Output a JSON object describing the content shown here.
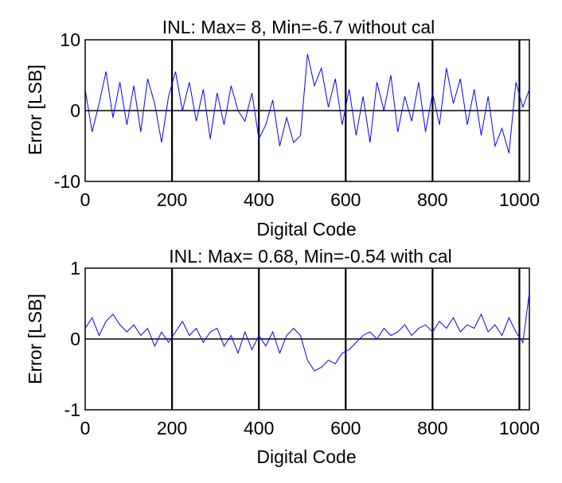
{
  "colors": {
    "trace": "#0000ff",
    "axes": "#000000",
    "background": "#ffffff"
  },
  "chart_data": [
    {
      "type": "line",
      "title": "INL: Max= 8, Min=-6.7 without cal",
      "xlabel": "Digital Code",
      "ylabel": "Error [LSB]",
      "xlim": [
        0,
        1023
      ],
      "ylim": [
        -10,
        10
      ],
      "xticks": [
        "0",
        "200",
        "400",
        "600",
        "800",
        "1000"
      ],
      "xtick_values": [
        0,
        200,
        400,
        600,
        800,
        1000
      ],
      "yticks": [
        "-10",
        "0",
        "10"
      ],
      "ytick_values": [
        -10,
        0,
        10
      ],
      "reference_lines_x": [
        200,
        400,
        600,
        800,
        1000
      ],
      "reference_line_y": 0,
      "grid": false,
      "legend": "none",
      "series": [
        {
          "x": [
            0,
            16,
            32,
            48,
            64,
            80,
            96,
            112,
            128,
            144,
            160,
            176,
            192,
            208,
            224,
            240,
            256,
            272,
            288,
            304,
            320,
            336,
            352,
            368,
            384,
            400,
            416,
            432,
            448,
            464,
            480,
            496,
            512,
            528,
            544,
            560,
            576,
            592,
            608,
            624,
            640,
            656,
            672,
            688,
            704,
            720,
            736,
            752,
            768,
            784,
            800,
            816,
            832,
            848,
            864,
            880,
            896,
            912,
            928,
            944,
            960,
            976,
            992,
            1008,
            1023
          ],
          "values": [
            3,
            -3,
            1,
            5.5,
            -1,
            4,
            -2,
            3.5,
            -3,
            4.5,
            1,
            -4.5,
            2,
            5.5,
            0,
            4,
            -1.5,
            3,
            -4,
            2.5,
            -2,
            3.5,
            0,
            -1.5,
            2.5,
            -4,
            -2,
            1.5,
            -5,
            -1,
            -4.5,
            -3.5,
            8,
            3.5,
            6,
            0.5,
            4.5,
            -2,
            3,
            -3.5,
            2,
            -4.5,
            4,
            0,
            5,
            -3,
            2,
            -1.5,
            4,
            -3,
            2.5,
            -2,
            6,
            1,
            4.5,
            -2,
            3,
            -3.5,
            2,
            -5,
            -2.5,
            -6,
            4,
            0.5,
            3
          ]
        }
      ]
    },
    {
      "type": "line",
      "title": "INL: Max= 0.68, Min=-0.54 with cal",
      "xlabel": "Digital Code",
      "ylabel": "Error [LSB]",
      "xlim": [
        0,
        1023
      ],
      "ylim": [
        -1,
        1
      ],
      "xticks": [
        "0",
        "200",
        "400",
        "600",
        "800",
        "1000"
      ],
      "xtick_values": [
        0,
        200,
        400,
        600,
        800,
        1000
      ],
      "yticks": [
        "-1",
        "0",
        "1"
      ],
      "ytick_values": [
        -1,
        0,
        1
      ],
      "reference_lines_x": [
        200,
        400,
        600,
        800,
        1000
      ],
      "reference_line_y": 0,
      "grid": false,
      "legend": "none",
      "series": [
        {
          "x": [
            0,
            16,
            32,
            48,
            64,
            80,
            96,
            112,
            128,
            144,
            160,
            176,
            192,
            208,
            224,
            240,
            256,
            272,
            288,
            304,
            320,
            336,
            352,
            368,
            384,
            400,
            416,
            432,
            448,
            464,
            480,
            496,
            512,
            528,
            544,
            560,
            576,
            592,
            608,
            624,
            640,
            656,
            672,
            688,
            704,
            720,
            736,
            752,
            768,
            784,
            800,
            816,
            832,
            848,
            864,
            880,
            896,
            912,
            928,
            944,
            960,
            976,
            992,
            1008,
            1023
          ],
          "values": [
            0.15,
            0.3,
            0.05,
            0.25,
            0.35,
            0.2,
            0.1,
            0.2,
            0.05,
            0.15,
            -0.1,
            0.1,
            -0.05,
            0.1,
            0.25,
            0.05,
            0.15,
            -0.05,
            0.1,
            0.15,
            -0.1,
            0.05,
            -0.2,
            0.1,
            -0.15,
            0.05,
            -0.1,
            0.1,
            -0.2,
            0.05,
            0.15,
            0.05,
            -0.3,
            -0.45,
            -0.4,
            -0.3,
            -0.35,
            -0.2,
            -0.15,
            -0.05,
            0.05,
            0.1,
            0.0,
            0.15,
            0.05,
            0.1,
            0.2,
            0.05,
            0.15,
            0.2,
            0.1,
            0.25,
            0.15,
            0.3,
            0.1,
            0.2,
            0.15,
            0.35,
            0.1,
            0.2,
            0.05,
            0.3,
            0.1,
            -0.05,
            0.65
          ]
        }
      ]
    }
  ]
}
